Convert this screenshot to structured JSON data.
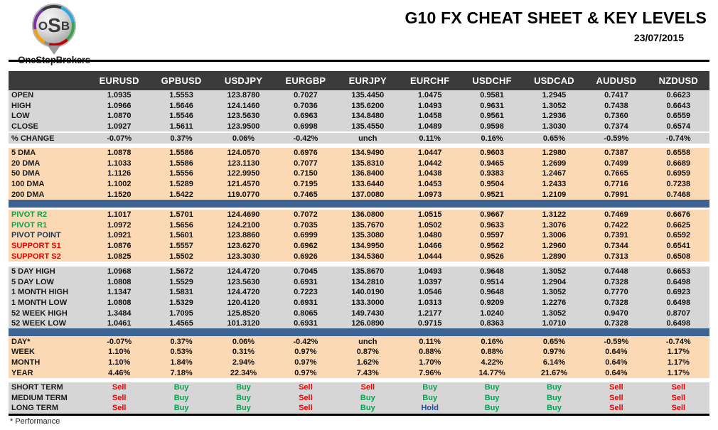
{
  "logo": {
    "monogram_o": "O",
    "monogram_s": "S",
    "monogram_b": "B",
    "brand": "OneStopBrokers"
  },
  "header": {
    "title": "G10 FX CHEAT SHEET & KEY LEVELS",
    "date": "23/07/2015"
  },
  "footer": {
    "note": "* Performance"
  },
  "colors": {
    "header_bg": "#3b3b3b",
    "gray_section": "#d6d6d6",
    "peach_section": "#fcd9b5",
    "blue_bar": "#3d6394",
    "labels": {
      "resistance": "#00a651",
      "pivot": "#17375e",
      "support": "#f00000"
    },
    "signals": {
      "Buy": "#00a651",
      "Sell": "#f00000",
      "Hold": "#1f4e9c"
    }
  },
  "table": {
    "columns": [
      "EURUSD",
      "GPBUSD",
      "USDJPY",
      "EURGBP",
      "EURJPY",
      "EURCHF",
      "USDCHF",
      "USDCAD",
      "AUDUSD",
      "NZDUSD"
    ],
    "sections": [
      {
        "id": "ohlc",
        "tone": "gray",
        "rows": [
          {
            "label": "OPEN",
            "values": [
              "1.0935",
              "1.5553",
              "123.8780",
              "0.7027",
              "135.4450",
              "1.0475",
              "0.9581",
              "1.2945",
              "0.7417",
              "0.6623"
            ]
          },
          {
            "label": "HIGH",
            "values": [
              "1.0966",
              "1.5646",
              "124.1460",
              "0.7036",
              "135.6200",
              "1.0493",
              "0.9631",
              "1.3052",
              "0.7438",
              "0.6643"
            ]
          },
          {
            "label": "LOW",
            "values": [
              "1.0870",
              "1.5546",
              "123.5630",
              "0.6963",
              "134.8480",
              "1.0458",
              "0.9561",
              "1.2936",
              "0.7360",
              "0.6559"
            ]
          },
          {
            "label": "CLOSE",
            "values": [
              "1.0927",
              "1.5611",
              "123.9500",
              "0.6998",
              "135.4550",
              "1.0489",
              "0.9598",
              "1.3030",
              "0.7374",
              "0.6574"
            ]
          }
        ]
      },
      {
        "id": "change",
        "tone": "gray",
        "rows": [
          {
            "label": "% CHANGE",
            "values": [
              "-0.07%",
              "0.37%",
              "0.06%",
              "-0.42%",
              "unch",
              "0.11%",
              "0.16%",
              "0.65%",
              "-0.59%",
              "-0.74%"
            ]
          }
        ]
      },
      {
        "id": "dma",
        "tone": "peach",
        "rows": [
          {
            "label": "5 DMA",
            "values": [
              "1.0878",
              "1.5586",
              "124.0570",
              "0.6976",
              "134.9490",
              "1.0447",
              "0.9603",
              "1.2980",
              "0.7387",
              "0.6558"
            ]
          },
          {
            "label": "20 DMA",
            "values": [
              "1.1033",
              "1.5586",
              "123.1130",
              "0.7077",
              "135.8310",
              "1.0442",
              "0.9465",
              "1.2699",
              "0.7499",
              "0.6689"
            ]
          },
          {
            "label": "50 DMA",
            "values": [
              "1.1126",
              "1.5556",
              "122.9950",
              "0.7150",
              "136.8400",
              "1.0438",
              "0.9383",
              "1.2467",
              "0.7665",
              "0.6959"
            ]
          },
          {
            "label": "100 DMA",
            "values": [
              "1.1002",
              "1.5289",
              "121.4570",
              "0.7195",
              "133.6440",
              "1.0453",
              "0.9504",
              "1.2433",
              "0.7716",
              "0.7238"
            ]
          },
          {
            "label": "200 DMA",
            "values": [
              "1.1520",
              "1.5422",
              "119.0770",
              "0.7465",
              "137.0080",
              "1.0973",
              "0.9521",
              "1.2109",
              "0.7991",
              "0.7468"
            ]
          }
        ]
      },
      {
        "id": "pivots",
        "tone": "peach",
        "rows": [
          {
            "label": "PIVOT R2",
            "label_color": "resistance",
            "values": [
              "1.1017",
              "1.5701",
              "124.4690",
              "0.7072",
              "136.0800",
              "1.0515",
              "0.9667",
              "1.3122",
              "0.7469",
              "0.6676"
            ]
          },
          {
            "label": "PIVOT R1",
            "label_color": "resistance",
            "values": [
              "1.0972",
              "1.5656",
              "124.2100",
              "0.7035",
              "135.7670",
              "1.0502",
              "0.9633",
              "1.3076",
              "0.7422",
              "0.6625"
            ]
          },
          {
            "label": "PIVOT POINT",
            "label_color": "pivot",
            "values": [
              "1.0921",
              "1.5601",
              "123.8860",
              "0.6999",
              "135.3080",
              "1.0480",
              "0.9597",
              "1.3006",
              "0.7391",
              "0.6592"
            ]
          },
          {
            "label": "SUPPORT S1",
            "label_color": "support",
            "values": [
              "1.0876",
              "1.5557",
              "123.6270",
              "0.6962",
              "134.9950",
              "1.0466",
              "0.9562",
              "1.2960",
              "0.7344",
              "0.6541"
            ]
          },
          {
            "label": "SUPPORT S2",
            "label_color": "support",
            "values": [
              "1.0825",
              "1.5502",
              "123.3030",
              "0.6926",
              "134.5360",
              "1.0444",
              "0.9526",
              "1.2890",
              "0.7313",
              "0.6508"
            ]
          }
        ]
      },
      {
        "id": "ranges",
        "tone": "gray",
        "rows": [
          {
            "label": "5 DAY HIGH",
            "values": [
              "1.0968",
              "1.5672",
              "124.4720",
              "0.7045",
              "135.8670",
              "1.0493",
              "0.9648",
              "1.3052",
              "0.7448",
              "0.6653"
            ]
          },
          {
            "label": "5 DAY LOW",
            "values": [
              "1.0808",
              "1.5529",
              "123.5630",
              "0.6931",
              "134.2810",
              "1.0397",
              "0.9514",
              "1.2904",
              "0.7328",
              "0.6498"
            ]
          },
          {
            "label": "1 MONTH HIGH",
            "values": [
              "1.1347",
              "1.5831",
              "124.4720",
              "0.7223",
              "140.0190",
              "1.0546",
              "0.9648",
              "1.3052",
              "0.7770",
              "0.6923"
            ]
          },
          {
            "label": "1 MONTH LOW",
            "values": [
              "1.0808",
              "1.5329",
              "120.4120",
              "0.6931",
              "133.3000",
              "1.0313",
              "0.9209",
              "1.2276",
              "0.7328",
              "0.6498"
            ]
          },
          {
            "label": "52 WEEK HIGH",
            "values": [
              "1.3484",
              "1.7095",
              "125.8520",
              "0.8065",
              "149.7430",
              "1.2177",
              "1.0240",
              "1.3052",
              "0.9470",
              "0.8707"
            ]
          },
          {
            "label": "52 WEEK LOW",
            "values": [
              "1.0461",
              "1.4565",
              "101.3120",
              "0.6931",
              "126.0890",
              "0.9715",
              "0.8363",
              "1.0710",
              "0.7328",
              "0.6498"
            ]
          }
        ]
      },
      {
        "id": "performance",
        "tone": "peach",
        "rows": [
          {
            "label": "DAY*",
            "values": [
              "-0.07%",
              "0.37%",
              "0.06%",
              "-0.42%",
              "unch",
              "0.11%",
              "0.16%",
              "0.65%",
              "-0.59%",
              "-0.74%"
            ]
          },
          {
            "label": "WEEK",
            "values": [
              "1.10%",
              "0.53%",
              "0.31%",
              "0.97%",
              "0.87%",
              "0.88%",
              "0.88%",
              "0.97%",
              "0.64%",
              "1.17%"
            ]
          },
          {
            "label": "MONTH",
            "values": [
              "1.10%",
              "1.84%",
              "2.94%",
              "0.97%",
              "1.62%",
              "1.70%",
              "4.22%",
              "6.14%",
              "0.64%",
              "1.17%"
            ]
          },
          {
            "label": "YEAR",
            "values": [
              "4.46%",
              "7.18%",
              "22.34%",
              "0.97%",
              "7.43%",
              "7.96%",
              "14.77%",
              "21.67%",
              "0.64%",
              "1.17%"
            ]
          }
        ]
      },
      {
        "id": "signals",
        "tone": "gray",
        "rows": [
          {
            "label": "SHORT TERM",
            "values": [
              "Sell",
              "Buy",
              "Buy",
              "Sell",
              "Sell",
              "Buy",
              "Buy",
              "Buy",
              "Sell",
              "Sell"
            ]
          },
          {
            "label": "MEDIUM TERM",
            "values": [
              "Sell",
              "Buy",
              "Buy",
              "Sell",
              "Buy",
              "Buy",
              "Buy",
              "Buy",
              "Sell",
              "Sell"
            ]
          },
          {
            "label": "LONG TERM",
            "values": [
              "Sell",
              "Buy",
              "Buy",
              "Sell",
              "Buy",
              "Hold",
              "Buy",
              "Buy",
              "Sell",
              "Sell"
            ]
          }
        ]
      }
    ]
  }
}
